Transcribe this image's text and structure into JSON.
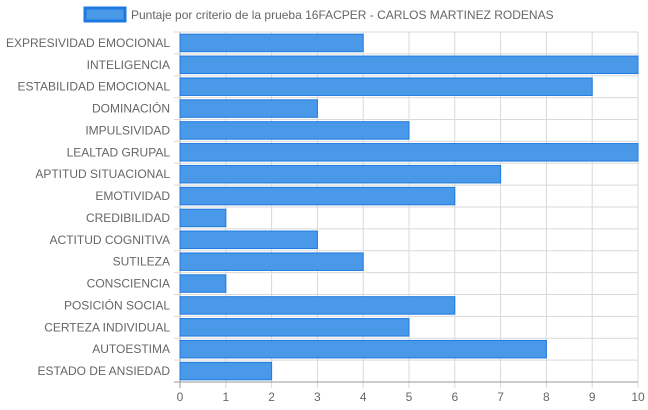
{
  "chart_data": {
    "type": "bar",
    "orientation": "horizontal",
    "legend": {
      "label": "Puntaje por criterio de la prueba 16FACPER - CARLOS MARTINEZ RODENAS",
      "position": "top"
    },
    "categories": [
      "EXPRESIVIDAD EMOCIONAL",
      "INTELIGENCIA",
      "ESTABILIDAD EMOCIONAL",
      "DOMINACIÓN",
      "IMPULSIVIDAD",
      "LEALTAD GRUPAL",
      "APTITUD SITUACIONAL",
      "EMOTIVIDAD",
      "CREDIBILIDAD",
      "ACTITUD COGNITIVA",
      "SUTILEZA",
      "CONSCIENCIA",
      "POSICIÓN SOCIAL",
      "CERTEZA INDIVIDUAL",
      "AUTOESTIMA",
      "ESTADO DE ANSIEDAD"
    ],
    "series": [
      {
        "name": "Puntaje por criterio de la prueba 16FACPER - CARLOS MARTINEZ RODENAS",
        "values": [
          4,
          10,
          9,
          3,
          5,
          10,
          7,
          6,
          1,
          3,
          4,
          1,
          6,
          5,
          8,
          2
        ]
      }
    ],
    "xlim": [
      0,
      10
    ],
    "xticks": [
      "0",
      "1",
      "2",
      "3",
      "4",
      "5",
      "6",
      "7",
      "8",
      "9",
      "10"
    ],
    "grid": true,
    "colors": {
      "bar_fill": "#4a98e8",
      "bar_border": "#1e7ae0",
      "grid": "#d9d9d9",
      "axis": "#999999",
      "text": "#666666"
    }
  }
}
